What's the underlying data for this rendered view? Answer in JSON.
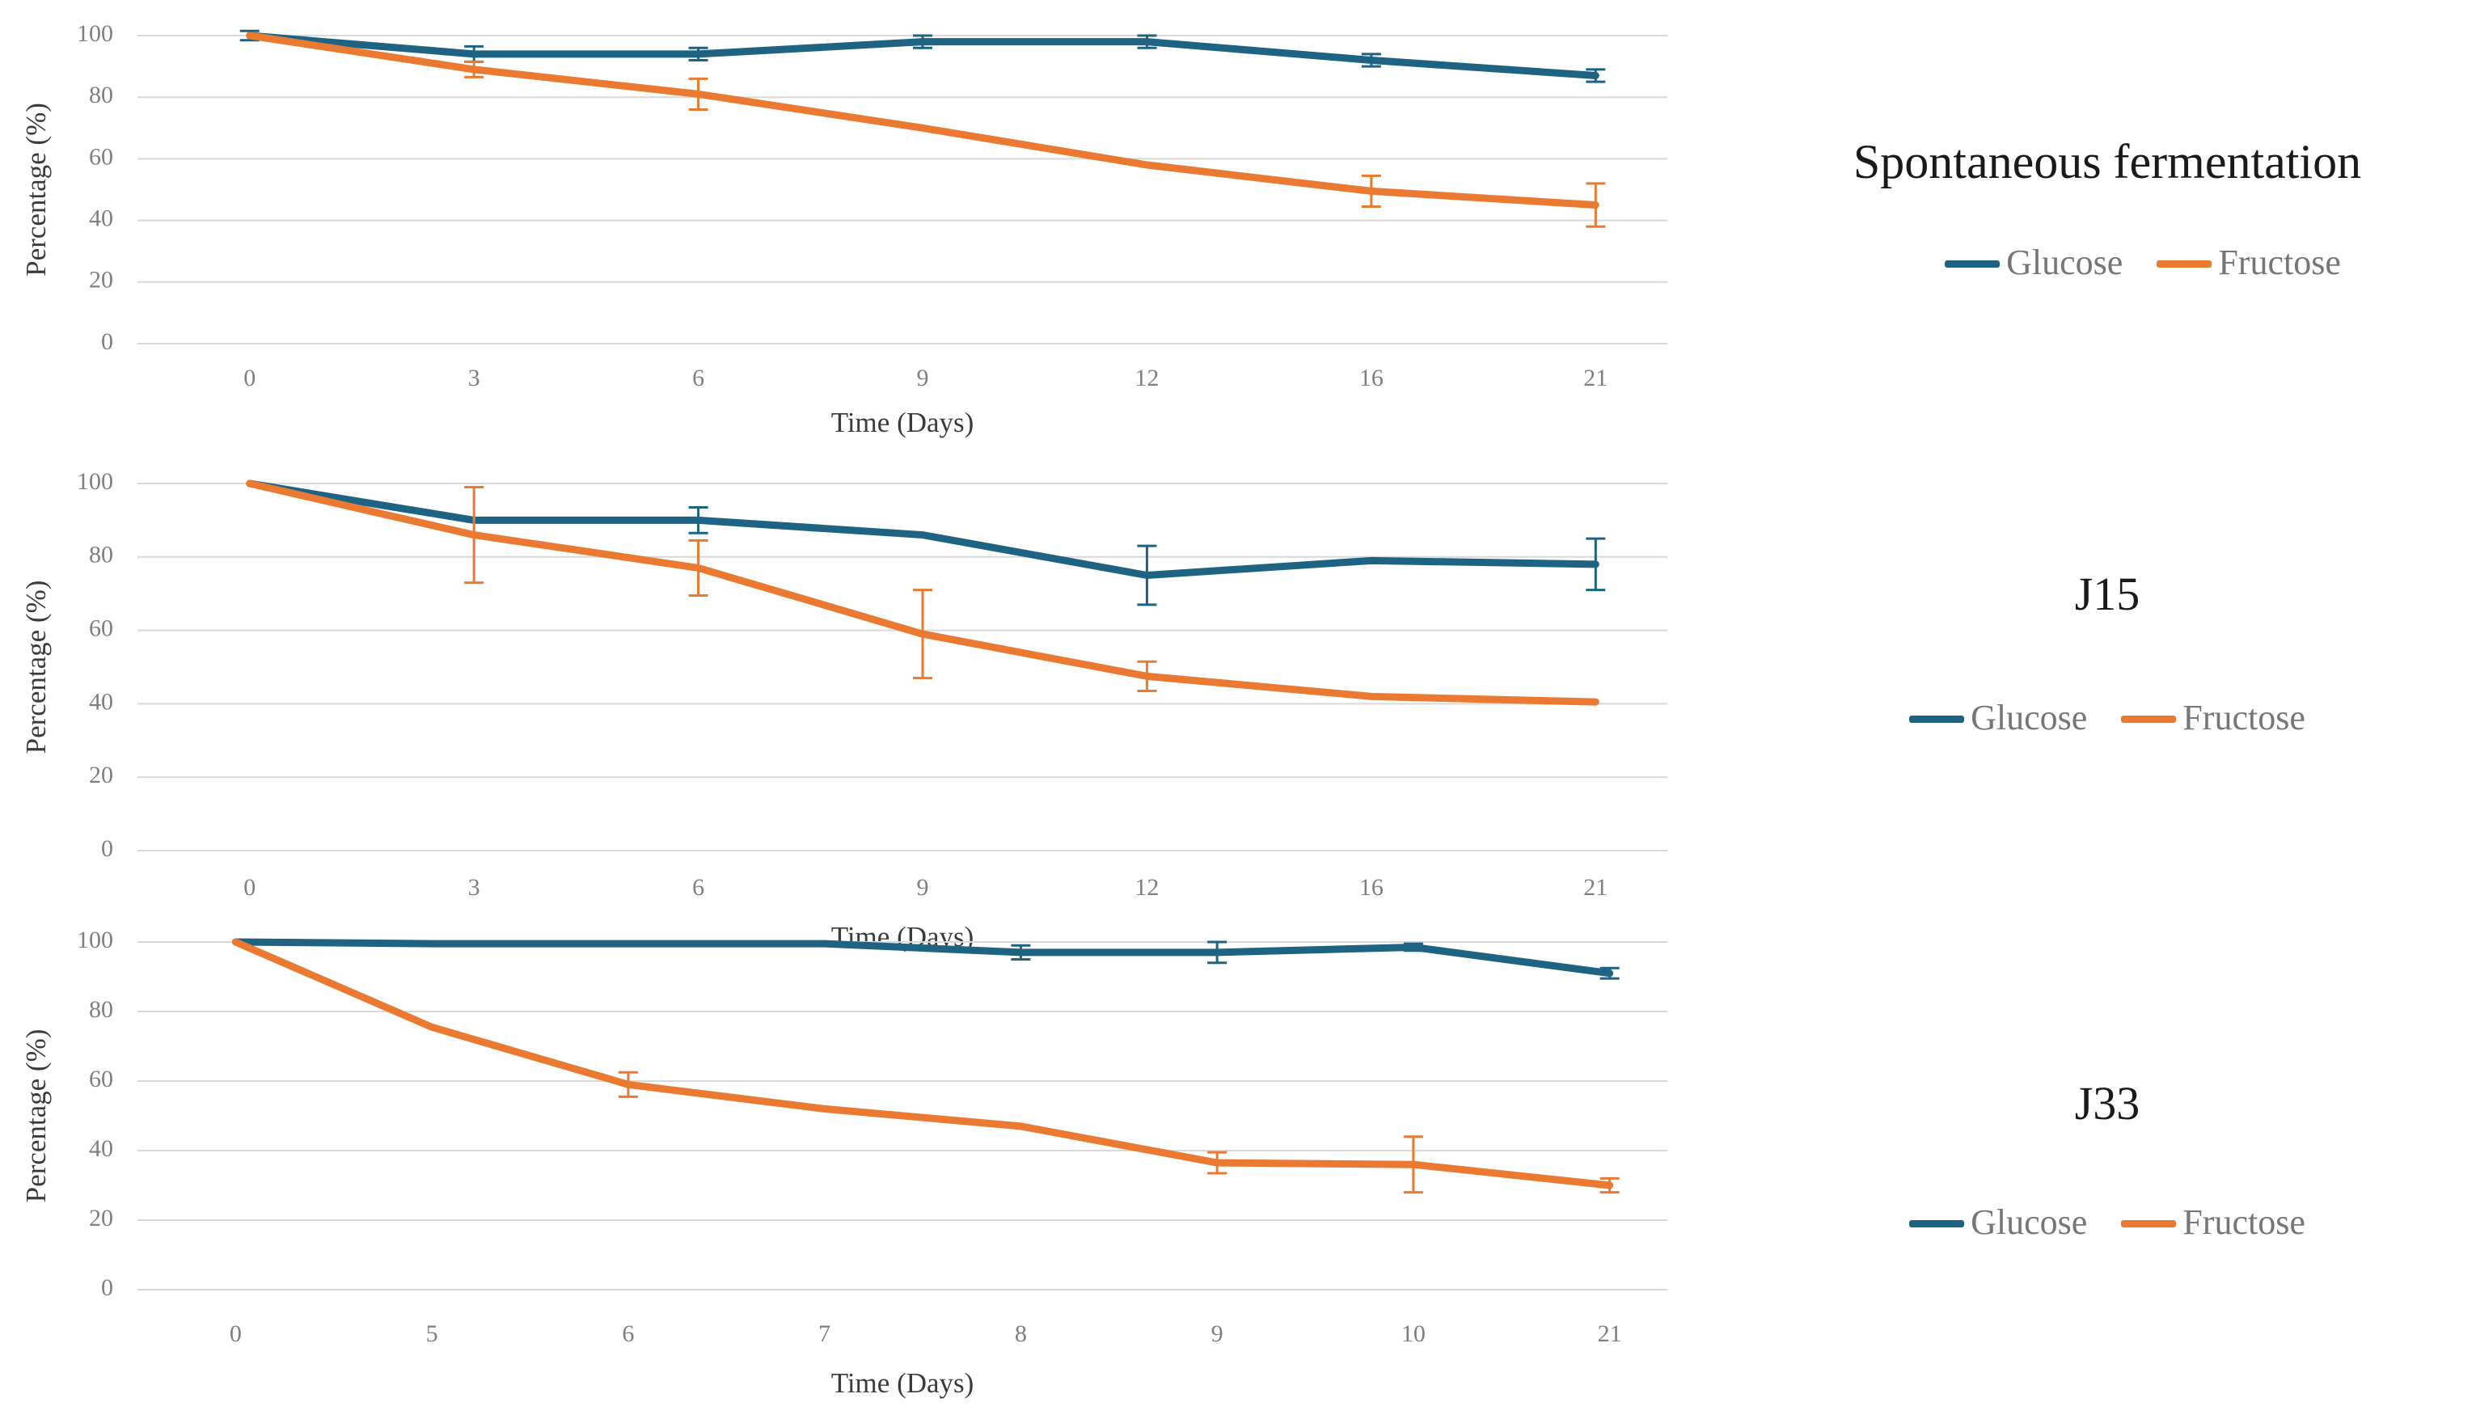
{
  "colors": {
    "glucose": "#1F6383",
    "fructose": "#EA7A31",
    "gridline": "#D9D9D9",
    "tick_label": "#7F7F7F",
    "axis_title": "#3B3B3B",
    "panel_title": "#1A1A1A",
    "legend_label": "#767676",
    "background": "#FFFFFF"
  },
  "axes": {
    "x_title": "Time (Days)",
    "y_title": "Percentage (%)",
    "y_tick_labels": [
      "100",
      "80",
      "60",
      "40",
      "20",
      "0"
    ]
  },
  "chart_data": [
    {
      "type": "line",
      "title": "Spontaneous fermentation",
      "xlabel": "Time (Days)",
      "ylabel": "Percentage (%)",
      "ylim": [
        0,
        100
      ],
      "yticks": [
        100,
        80,
        60,
        40,
        20,
        0
      ],
      "grid": true,
      "legend_position": "right",
      "error_bars": true,
      "categories": [
        "0",
        "3",
        "6",
        "9",
        "12",
        "16",
        "21"
      ],
      "series": [
        {
          "name": "Glucose",
          "color": "#1F6383",
          "values": [
            100,
            94,
            94,
            98,
            98,
            92,
            87
          ],
          "errors": [
            1.5,
            2.5,
            2,
            2,
            2,
            2,
            2
          ]
        },
        {
          "name": "Fructose",
          "color": "#EA7A31",
          "values": [
            100,
            89,
            81,
            70,
            58,
            49.5,
            45
          ],
          "errors": [
            0,
            2.5,
            5,
            0,
            0,
            5,
            7
          ]
        }
      ]
    },
    {
      "type": "line",
      "title": "J15",
      "xlabel": "Time (Days)",
      "ylabel": "Percentage (%)",
      "ylim": [
        0,
        100
      ],
      "yticks": [
        100,
        80,
        60,
        40,
        20,
        0
      ],
      "grid": true,
      "legend_position": "right",
      "error_bars": true,
      "categories": [
        "0",
        "3",
        "6",
        "9",
        "12",
        "16",
        "21"
      ],
      "series": [
        {
          "name": "Glucose",
          "color": "#1F6383",
          "values": [
            100,
            90,
            90,
            86,
            75,
            79,
            78
          ],
          "errors": [
            0,
            0,
            3.5,
            0,
            8,
            0,
            7
          ]
        },
        {
          "name": "Fructose",
          "color": "#EA7A31",
          "values": [
            100,
            86,
            77,
            59,
            47.5,
            42,
            40.5
          ],
          "errors": [
            0,
            13,
            7.5,
            12,
            4,
            0,
            0
          ]
        }
      ]
    },
    {
      "type": "line",
      "title": "J33",
      "xlabel": "Time (Days)",
      "ylabel": "Percentage (%)",
      "ylim": [
        0,
        100
      ],
      "yticks": [
        100,
        80,
        60,
        40,
        20,
        0
      ],
      "grid": true,
      "legend_position": "right",
      "error_bars": true,
      "categories": [
        "0",
        "5",
        "6",
        "7",
        "8",
        "9",
        "10",
        "21"
      ],
      "series": [
        {
          "name": "Glucose",
          "color": "#1F6383",
          "values": [
            100,
            99.5,
            99.5,
            99.5,
            97,
            97,
            98.5,
            91
          ],
          "errors": [
            0,
            0,
            0,
            0,
            2,
            3,
            1,
            1.5
          ]
        },
        {
          "name": "Fructose",
          "color": "#EA7A31",
          "values": [
            100,
            75.5,
            59,
            52,
            47,
            36.5,
            36,
            30
          ],
          "errors": [
            0,
            0,
            3.5,
            0,
            0,
            3,
            8,
            2
          ]
        }
      ]
    }
  ]
}
